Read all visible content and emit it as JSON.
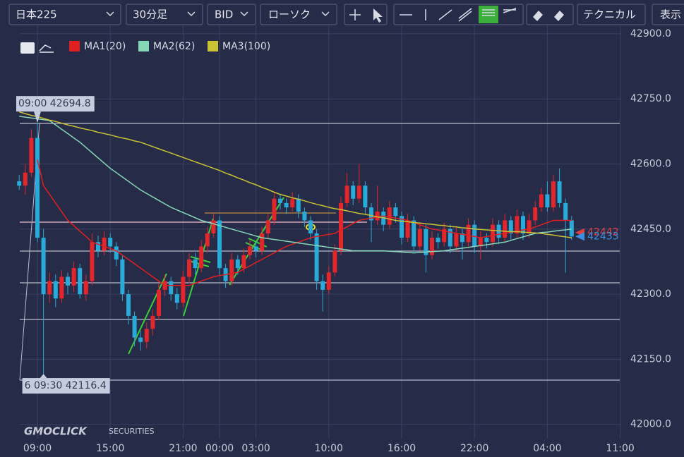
{
  "toolbar": {
    "symbol": "日本225",
    "interval": "30分足",
    "price": "BID",
    "chart_type": "ローソク",
    "technical": "テクニカル",
    "display": "表示"
  },
  "logo": {
    "brand": "GMOCLICK",
    "sub": "SECURITIES"
  },
  "chart_data": {
    "type": "candlestick",
    "categories": [
      null,
      null,
      null,
      "09:00",
      null,
      null,
      null,
      null,
      null,
      null,
      null,
      null,
      null,
      null,
      null,
      "15:00",
      null,
      null,
      null,
      null,
      null,
      null,
      null,
      null,
      null,
      null,
      null,
      "21:00",
      null,
      null,
      null,
      null,
      null,
      "00:00",
      null,
      null,
      null,
      null,
      null,
      "03:00",
      null,
      null,
      null,
      null,
      null,
      null,
      null,
      null,
      null,
      null,
      null,
      "10:00",
      null,
      null,
      null,
      null,
      null,
      null,
      null,
      null,
      null,
      null,
      null,
      "16:00",
      null,
      null,
      null,
      null,
      null,
      null,
      null,
      null,
      null,
      null,
      null,
      "22:00",
      null,
      null,
      null,
      null,
      null,
      null,
      null,
      null,
      null,
      null,
      null,
      "04:00",
      null,
      null,
      null,
      null,
      null,
      null,
      null,
      null,
      null,
      null,
      null,
      "11:00"
    ],
    "up_color": "#e3262c",
    "down_color": "#2aaad9",
    "ohlc": [
      [
        42560,
        42575,
        42540,
        42550
      ],
      [
        42550,
        42600,
        42530,
        42580
      ],
      [
        42580,
        42680,
        42570,
        42660
      ],
      [
        42660,
        42694.8,
        42420,
        42430
      ],
      [
        42430,
        42450,
        42116.4,
        42300
      ],
      [
        42300,
        42350,
        42280,
        42330
      ],
      [
        42330,
        42345,
        42270,
        42290
      ],
      [
        42290,
        42355,
        42280,
        42340
      ],
      [
        42340,
        42350,
        42300,
        42320
      ],
      [
        42320,
        42375,
        42305,
        42360
      ],
      [
        42360,
        42370,
        42290,
        42300
      ],
      [
        42300,
        42345,
        42285,
        42330
      ],
      [
        42330,
        42440,
        42320,
        42420
      ],
      [
        42420,
        42435,
        42385,
        42400
      ],
      [
        42400,
        42445,
        42390,
        42430
      ],
      [
        42430,
        42440,
        42395,
        42410
      ],
      [
        42410,
        42420,
        42365,
        42380
      ],
      [
        42380,
        42390,
        42285,
        42300
      ],
      [
        42300,
        42310,
        42230,
        42250
      ],
      [
        42250,
        42260,
        42180,
        42200
      ],
      [
        42200,
        42215,
        42170,
        42190
      ],
      [
        42190,
        42235,
        42175,
        42220
      ],
      [
        42220,
        42265,
        42205,
        42250
      ],
      [
        42250,
        42325,
        42240,
        42310
      ],
      [
        42310,
        42345,
        42295,
        42330
      ],
      [
        42330,
        42340,
        42285,
        42300
      ],
      [
        42300,
        42315,
        42265,
        42280
      ],
      [
        42280,
        42355,
        42270,
        42340
      ],
      [
        42340,
        42395,
        42325,
        42380
      ],
      [
        42380,
        42395,
        42345,
        42360
      ],
      [
        42360,
        42425,
        42350,
        42410
      ],
      [
        42410,
        42455,
        42395,
        42440
      ],
      [
        42440,
        42485,
        42430,
        42470
      ],
      [
        42470,
        42480,
        42345,
        42360
      ],
      [
        42360,
        42370,
        42315,
        42330
      ],
      [
        42330,
        42395,
        42320,
        42380
      ],
      [
        42380,
        42390,
        42345,
        42360
      ],
      [
        42360,
        42405,
        42350,
        42390
      ],
      [
        42390,
        42425,
        42380,
        42410
      ],
      [
        42410,
        42420,
        42385,
        42400
      ],
      [
        42400,
        42455,
        42390,
        42440
      ],
      [
        42440,
        42485,
        42430,
        42470
      ],
      [
        42470,
        42535,
        42460,
        42520
      ],
      [
        42520,
        42530,
        42495,
        42510
      ],
      [
        42510,
        42520,
        42485,
        42500
      ],
      [
        42500,
        42535,
        42490,
        42520
      ],
      [
        42520,
        42530,
        42475,
        42490
      ],
      [
        42490,
        42500,
        42455,
        42470
      ],
      [
        42470,
        42480,
        42425,
        42440
      ],
      [
        42440,
        42450,
        42310,
        42330
      ],
      [
        42330,
        42345,
        42260,
        42310
      ],
      [
        42310,
        42365,
        42300,
        42350
      ],
      [
        42350,
        42415,
        42340,
        42400
      ],
      [
        42400,
        42525,
        42390,
        42510
      ],
      [
        42510,
        42580,
        42500,
        42550
      ],
      [
        42550,
        42560,
        42505,
        42520
      ],
      [
        42520,
        42600,
        42510,
        42550
      ],
      [
        42550,
        42560,
        42485,
        42500
      ],
      [
        42500,
        42510,
        42420,
        42470
      ],
      [
        42470,
        42550,
        42460,
        42490
      ],
      [
        42490,
        42500,
        42445,
        42460
      ],
      [
        42460,
        42515,
        42450,
        42500
      ],
      [
        42500,
        42510,
        42465,
        42480
      ],
      [
        42480,
        42490,
        42415,
        42430
      ],
      [
        42430,
        42485,
        42420,
        42470
      ],
      [
        42470,
        42480,
        42395,
        42410
      ],
      [
        42410,
        42465,
        42400,
        42450
      ],
      [
        42450,
        42460,
        42350,
        42390
      ],
      [
        42390,
        42445,
        42380,
        42430
      ],
      [
        42430,
        42440,
        42405,
        42420
      ],
      [
        42420,
        42465,
        42410,
        42450
      ],
      [
        42450,
        42460,
        42395,
        42410
      ],
      [
        42410,
        42455,
        42400,
        42440
      ],
      [
        42440,
        42450,
        42380,
        42420
      ],
      [
        42420,
        42475,
        42410,
        42460
      ],
      [
        42460,
        42470,
        42395,
        42410
      ],
      [
        42410,
        42445,
        42380,
        42430
      ],
      [
        42430,
        42440,
        42405,
        42420
      ],
      [
        42420,
        42475,
        42410,
        42460
      ],
      [
        42460,
        42470,
        42415,
        42430
      ],
      [
        42430,
        42485,
        42420,
        42470
      ],
      [
        42470,
        42480,
        42425,
        42440
      ],
      [
        42440,
        42495,
        42430,
        42480
      ],
      [
        42480,
        42490,
        42425,
        42440
      ],
      [
        42440,
        42485,
        42430,
        42470
      ],
      [
        42470,
        42515,
        42460,
        42500
      ],
      [
        42500,
        42545,
        42490,
        42530
      ],
      [
        42530,
        42560,
        42490,
        42500
      ],
      [
        42500,
        42575,
        42490,
        42560
      ],
      [
        42560,
        42590,
        42500,
        42510
      ],
      [
        42510,
        42520,
        42350,
        42470
      ],
      [
        42470,
        42480,
        42425,
        42433
      ],
      null,
      null,
      null,
      null,
      null,
      null,
      null,
      null
    ],
    "series": [
      {
        "name": "MA1(20)",
        "color": "#e02020",
        "values": [
          null,
          null,
          null,
          42610,
          42550,
          42530,
          42510,
          42490,
          42470,
          42458,
          42445,
          42433,
          42420,
          42415,
          42410,
          42405,
          42400,
          42390,
          42380,
          42370,
          42360,
          42350,
          42340,
          42330,
          42320,
          42320,
          42320,
          42320,
          42320,
          42325,
          42330,
          42335,
          42340,
          42343,
          42345,
          42348,
          42350,
          42358,
          42365,
          42373,
          42380,
          42388,
          42395,
          42403,
          42410,
          42415,
          42420,
          42425,
          42430,
          42433,
          42435,
          42438,
          42440,
          42448,
          42455,
          42463,
          42470,
          42473,
          42475,
          42478,
          42480,
          42478,
          42475,
          42473,
          42470,
          42465,
          42460,
          42455,
          42450,
          42448,
          42445,
          42443,
          42440,
          42438,
          42435,
          42433,
          42430,
          42433,
          42435,
          42438,
          42440,
          42443,
          42445,
          42448,
          42450,
          42455,
          42460,
          42465,
          42470,
          42470,
          42470,
          42470,
          null,
          null,
          null,
          null,
          null,
          null,
          null,
          null
        ]
      },
      {
        "name": "MA2(62)",
        "color": "#86d6b8",
        "values": [
          42710,
          42708,
          42706,
          42704,
          42702,
          42700,
          42690,
          42680,
          42670,
          42660,
          42650,
          42638,
          42626,
          42614,
          42602,
          42590,
          42580,
          42570,
          42560,
          42550,
          42540,
          42532,
          42524,
          42516,
          42508,
          42500,
          42494,
          42488,
          42482,
          42476,
          42470,
          42466,
          42462,
          42458,
          42454,
          42450,
          42446,
          42442,
          42438,
          42434,
          42430,
          42428,
          42426,
          42424,
          42422,
          42420,
          42418,
          42416,
          42414,
          42412,
          42410,
          42408,
          42406,
          42404,
          42402,
          42400,
          42400,
          42400,
          42400,
          42400,
          42400,
          42399,
          42398,
          42397,
          42396,
          42395,
          42396,
          42397,
          42398,
          42399,
          42400,
          42402,
          42404,
          42406,
          42408,
          42410,
          42412,
          42414,
          42416,
          42418,
          42420,
          42424,
          42428,
          42432,
          42436,
          42440,
          42442,
          42443,
          42445,
          42447,
          42448,
          42450,
          null,
          null,
          null,
          null,
          null,
          null,
          null,
          null
        ]
      },
      {
        "name": "MA3(100)",
        "color": "#c9c234",
        "values": [
          42720,
          42716,
          42712,
          42709,
          42705,
          42701,
          42698,
          42694,
          42690,
          42687,
          42683,
          42680,
          42677,
          42673,
          42670,
          42667,
          42663,
          42660,
          42657,
          42653,
          42650,
          42645,
          42640,
          42635,
          42630,
          42625,
          42620,
          42615,
          42610,
          42605,
          42600,
          42595,
          42590,
          42585,
          42579,
          42574,
          42568,
          42563,
          42557,
          42552,
          42546,
          42541,
          42535,
          42530,
          42526,
          42522,
          42519,
          42515,
          42511,
          42507,
          42504,
          42500,
          42497,
          42495,
          42492,
          42489,
          42486,
          42484,
          42481,
          42478,
          42476,
          42473,
          42470,
          42468,
          42467,
          42465,
          42464,
          42462,
          42461,
          42459,
          42458,
          42456,
          42455,
          42453,
          42452,
          42450,
          42449,
          42448,
          42447,
          42446,
          42445,
          42444,
          42444,
          42443,
          42442,
          42441,
          42440,
          42438,
          42436,
          42434,
          42432,
          42430,
          null,
          null,
          null,
          null,
          null,
          null,
          null,
          null
        ]
      }
    ],
    "ylim": [
      41967,
      42921
    ],
    "yticks": [
      {
        "value": 42000,
        "label": "42000.0"
      },
      {
        "value": 42150,
        "label": "42150.0"
      },
      {
        "value": 42300,
        "label": "42300.0"
      },
      {
        "value": 42450,
        "label": "42450.0"
      },
      {
        "value": 42600,
        "label": "42600.0"
      },
      {
        "value": 42750,
        "label": "42750.0"
      },
      {
        "value": 42900,
        "label": "42900.0"
      }
    ],
    "grid": true,
    "annotations": [
      {
        "text": "09:00 42694.8",
        "index": 3,
        "value": 42694.8
      },
      {
        "text": "6 09:30 42116.4",
        "index": 4,
        "value": 42116.4
      }
    ],
    "price_tags": [
      {
        "value": 42442,
        "color": "#e04040"
      },
      {
        "value": 42433,
        "color": "#3d8fe0"
      }
    ]
  }
}
